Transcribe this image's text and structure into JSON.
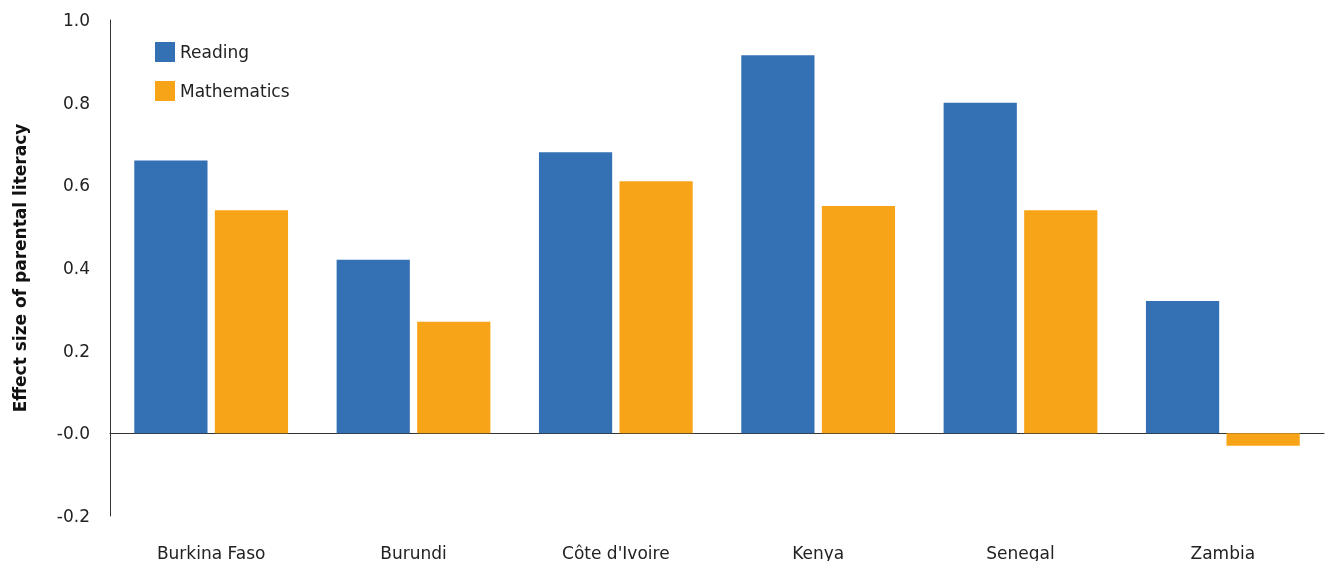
{
  "chart_data": {
    "type": "bar",
    "ylabel": "Effect size of parental literacy",
    "categories": [
      "Burkina Faso",
      "Burundi",
      "Côte d'Ivoire",
      "Kenya",
      "Senegal",
      "Zambia"
    ],
    "series": [
      {
        "name": "Reading",
        "color": "#3471b4",
        "values": [
          0.66,
          0.42,
          0.68,
          0.915,
          0.8,
          0.32
        ]
      },
      {
        "name": "Mathematics",
        "color": "#f7a418",
        "values": [
          0.54,
          0.27,
          0.61,
          0.55,
          0.54,
          -0.03
        ]
      }
    ],
    "ylim": [
      -0.2,
      1.0
    ],
    "yticks": [
      -0.2,
      {
        "value": 0,
        "label": "-0.0"
      },
      0.2,
      0.4,
      0.6,
      0.8,
      {
        "value": 1,
        "label": "1.0"
      }
    ],
    "legend": "top left"
  }
}
